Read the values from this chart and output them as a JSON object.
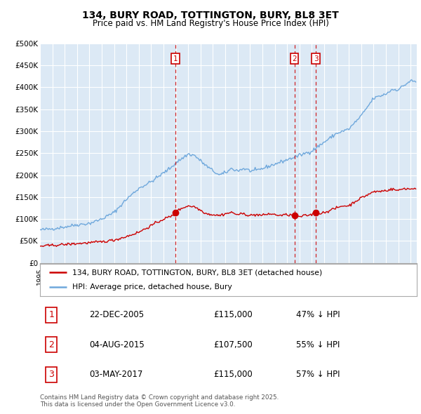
{
  "title": "134, BURY ROAD, TOTTINGTON, BURY, BL8 3ET",
  "subtitle": "Price paid vs. HM Land Registry's House Price Index (HPI)",
  "background_color": "#ffffff",
  "plot_bg_color": "#dce9f5",
  "hpi_color": "#6fa8dc",
  "price_color": "#cc0000",
  "grid_color": "#ffffff",
  "sale_labels": [
    "1",
    "2",
    "3"
  ],
  "sale_hpi_pct": [
    "47% ↓ HPI",
    "55% ↓ HPI",
    "57% ↓ HPI"
  ],
  "sale_date_labels": [
    "22-DEC-2005",
    "04-AUG-2015",
    "03-MAY-2017"
  ],
  "sale_price_labels": [
    "£115,000",
    "£107,500",
    "£115,000"
  ],
  "sale_decimal": [
    2005.97,
    2015.59,
    2017.33
  ],
  "sale_prices": [
    115000,
    107500,
    115000
  ],
  "legend_red_label": "134, BURY ROAD, TOTTINGTON, BURY, BL8 3ET (detached house)",
  "legend_blue_label": "HPI: Average price, detached house, Bury",
  "footer": "Contains HM Land Registry data © Crown copyright and database right 2025.\nThis data is licensed under the Open Government Licence v3.0.",
  "ylim": [
    0,
    500000
  ],
  "yticks": [
    0,
    50000,
    100000,
    150000,
    200000,
    250000,
    300000,
    350000,
    400000,
    450000,
    500000
  ],
  "ytick_labels": [
    "£0",
    "£50K",
    "£100K",
    "£150K",
    "£200K",
    "£250K",
    "£300K",
    "£350K",
    "£400K",
    "£450K",
    "£500K"
  ],
  "xlim_start": 1995.0,
  "xlim_end": 2025.5,
  "title_fontsize": 10,
  "subtitle_fontsize": 8.5
}
